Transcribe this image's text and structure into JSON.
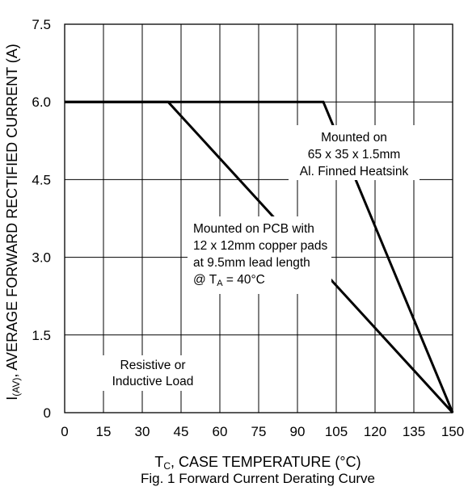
{
  "chart_data": {
    "type": "line",
    "title": "",
    "caption": "Fig. 1 Forward Current Derating Curve",
    "xlabel": {
      "main": "T",
      "sub": "C",
      "rest": ", CASE TEMPERATURE (°C)"
    },
    "ylabel": {
      "main": "I",
      "sub": "(AV)",
      "rest": ", AVERAGE FORWARD RECTIFIED CURRENT (A)"
    },
    "xlim": [
      0,
      150
    ],
    "ylim": [
      0,
      7.5
    ],
    "xticks": [
      0,
      15,
      30,
      45,
      60,
      75,
      90,
      105,
      120,
      135,
      150
    ],
    "yticks": [
      0,
      1.5,
      3.0,
      4.5,
      6.0,
      7.5
    ],
    "ytick_labels": [
      "0",
      "1.5",
      "3.0",
      "4.5",
      "6.0",
      "7.5"
    ],
    "grid": true,
    "series": [
      {
        "x": [
          0,
          40,
          150
        ],
        "y": [
          6.0,
          6.0,
          0
        ]
      },
      {
        "x": [
          0,
          100,
          150
        ],
        "y": [
          6.0,
          6.0,
          0
        ]
      }
    ],
    "annotations": {
      "heatsink": [
        "Mounted on",
        "65 x 35 x 1.5mm",
        "Al. Finned Heatsink"
      ],
      "pcb": {
        "lines": [
          "Mounted on PCB with",
          "12 x 12mm copper pads",
          "at 9.5mm lead length"
        ],
        "last_prefix": "@ T",
        "last_sub": "A",
        "last_rest": " = 40°C"
      },
      "load": [
        "Resistive or",
        "Inductive Load"
      ]
    }
  }
}
